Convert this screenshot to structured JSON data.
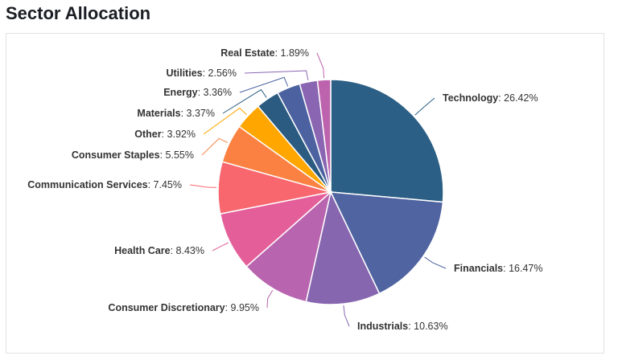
{
  "page": {
    "title": "Sector Allocation"
  },
  "chart_data": {
    "type": "pie",
    "title": "Sector Allocation",
    "start_angle": "top (12 o'clock)",
    "direction": "clockwise",
    "label_format": "{name}: {value}%",
    "slices": [
      {
        "name": "Technology",
        "value": 26.42,
        "color": "#2c5f85"
      },
      {
        "name": "Financials",
        "value": 16.47,
        "color": "#4f64a0"
      },
      {
        "name": "Industrials",
        "value": 10.63,
        "color": "#8766b0"
      },
      {
        "name": "Consumer Discretionary",
        "value": 9.95,
        "color": "#b964ae"
      },
      {
        "name": "Health Care",
        "value": 8.43,
        "color": "#e45f9a"
      },
      {
        "name": "Communication Services",
        "value": 7.45,
        "color": "#f8666e"
      },
      {
        "name": "Consumer Staples",
        "value": 5.55,
        "color": "#fa8142"
      },
      {
        "name": "Other",
        "value": 3.92,
        "color": "#ffa600"
      },
      {
        "name": "Materials",
        "value": 3.37,
        "color": "#2b5b80"
      },
      {
        "name": "Energy",
        "value": 3.36,
        "color": "#4c62a0"
      },
      {
        "name": "Utilities",
        "value": 2.56,
        "color": "#8a66b2"
      },
      {
        "name": "Real Estate",
        "value": 1.89,
        "color": "#bd63ad"
      }
    ]
  }
}
